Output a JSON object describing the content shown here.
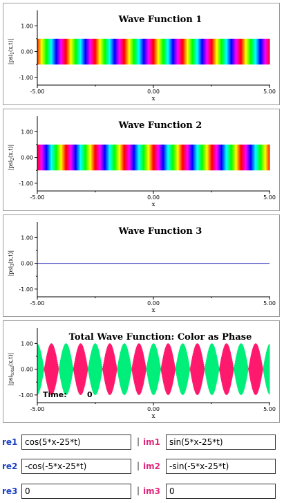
{
  "panels": [
    {
      "title": "Wave Function 1",
      "ylabel_main": "|psi",
      "ylabel_sub": "1",
      "ylabel_tail": "(x,t)|",
      "kind": "phase_band",
      "amplitude": 0.5,
      "k": 5
    },
    {
      "title": "Wave Function 2",
      "ylabel_main": "|psi",
      "ylabel_sub": "2",
      "ylabel_tail": "(x,t)|",
      "kind": "phase_band",
      "amplitude": 0.5,
      "k": -5
    },
    {
      "title": "Wave Function 3",
      "ylabel_main": "|psi",
      "ylabel_sub": "3",
      "ylabel_tail": "(x,t)|",
      "kind": "zero_line",
      "amplitude": 0
    },
    {
      "title": "Total Wave Function: Color as Phase",
      "ylabel_main": "|psi",
      "ylabel_sub": "total",
      "ylabel_tail": "(x,t)|",
      "kind": "total",
      "amplitude": 1,
      "k": 5,
      "time_label": "Time:",
      "time_value": "0"
    }
  ],
  "axes": {
    "xlabel": "x",
    "xticks": [
      "-5.00",
      "0.00",
      "5.00"
    ],
    "yticks": [
      "1.00",
      "0.00",
      "-1.00"
    ],
    "xlim": [
      -5,
      5
    ],
    "ylim": [
      -1.3,
      1.6
    ]
  },
  "colors": {
    "total_positive": "#00ee7a",
    "total_negative": "#ff1a6e",
    "zero_line": "#3030c0",
    "re_label": "#1a40c8",
    "im_label": "#e0287c"
  },
  "controls": [
    {
      "re_label": "re1",
      "re_value": "cos(5*x-25*t)",
      "im_label": "im1",
      "im_value": "sin(5*x-25*t)"
    },
    {
      "re_label": "re2",
      "re_value": "-cos(-5*x-25*t)",
      "im_label": "im2",
      "im_value": "-sin(-5*x-25*t)"
    },
    {
      "re_label": "re3",
      "re_value": "0",
      "im_label": "im3",
      "im_value": "0"
    }
  ],
  "separator": "|"
}
